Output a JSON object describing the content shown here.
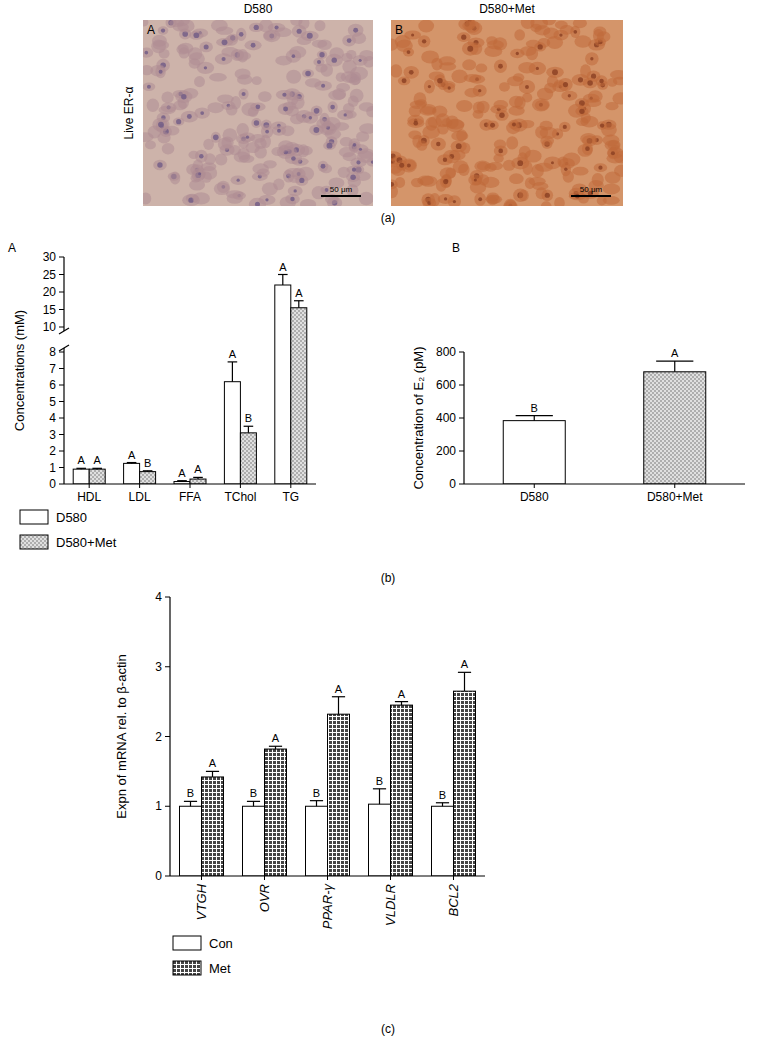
{
  "figure": {
    "panel_labels": [
      "(a)",
      "(b)",
      "(c)"
    ]
  },
  "images": {
    "row_label": "Live ER-α",
    "panels": [
      {
        "title": "D580",
        "letter": "A",
        "scale_bar": "50 μm"
      },
      {
        "title": "D580+Met",
        "letter": "B",
        "scale_bar": "50 μm"
      }
    ]
  },
  "chart_data": [
    {
      "type": "bar",
      "title": "A",
      "y_label": "Concentrations (mM)",
      "categories": [
        "HDL",
        "LDL",
        "FFA",
        "TChol",
        "TG"
      ],
      "series": [
        {
          "name": "D580",
          "color": "#ffffff",
          "values": [
            0.9,
            1.25,
            0.15,
            6.2,
            22
          ],
          "errors": [
            0.05,
            0.05,
            0.05,
            1.2,
            3
          ],
          "letters": [
            "A",
            "A",
            "A",
            "A",
            "A"
          ]
        },
        {
          "name": "D580+Met",
          "color": "#e0e0e0",
          "values": [
            0.9,
            0.75,
            0.3,
            3.1,
            15.5
          ],
          "errors": [
            0.05,
            0.05,
            0.1,
            0.4,
            2
          ],
          "letters": [
            "A",
            "B",
            "A",
            "B",
            "A"
          ]
        }
      ],
      "ylim": [
        0,
        30
      ],
      "axis_break": [
        8,
        10
      ],
      "yticks": [
        0,
        1,
        2,
        3,
        4,
        5,
        6,
        7,
        8,
        10,
        15,
        20,
        25,
        30
      ],
      "legend": "bottom left"
    },
    {
      "type": "bar",
      "title": "B",
      "y_label": "Concentration of E₂ (pM)",
      "categories": [
        "D580",
        "D580+Met"
      ],
      "values": [
        384,
        680
      ],
      "errors": [
        30,
        65
      ],
      "letters": [
        "B",
        "A"
      ],
      "colors": [
        "#ffffff",
        "#e0e0e0"
      ],
      "ylim": [
        0,
        800
      ],
      "yticks": [
        0,
        200,
        400,
        600,
        800
      ]
    },
    {
      "type": "bar",
      "y_label": "Expn of mRNA rel. to β-actin",
      "categories": [
        "VTGH",
        "OVR",
        "PPAR-γ",
        "VLDLR",
        "BCL2"
      ],
      "series": [
        {
          "name": "Con",
          "color": "#ffffff",
          "values": [
            1,
            1,
            1,
            1.03,
            1
          ],
          "errors": [
            0.07,
            0.07,
            0.08,
            0.22,
            0.05
          ],
          "letters": [
            "B",
            "B",
            "B",
            "B",
            "B"
          ]
        },
        {
          "name": "Met",
          "color": "#444444",
          "values": [
            1.42,
            1.82,
            2.32,
            2.45,
            2.65
          ],
          "errors": [
            0.08,
            0.04,
            0.25,
            0.05,
            0.27
          ],
          "letters": [
            "A",
            "A",
            "A",
            "A",
            "A"
          ]
        }
      ],
      "ylim": [
        0,
        4
      ],
      "yticks": [
        0,
        1,
        2,
        3,
        4
      ],
      "legend": "bottom left"
    }
  ]
}
